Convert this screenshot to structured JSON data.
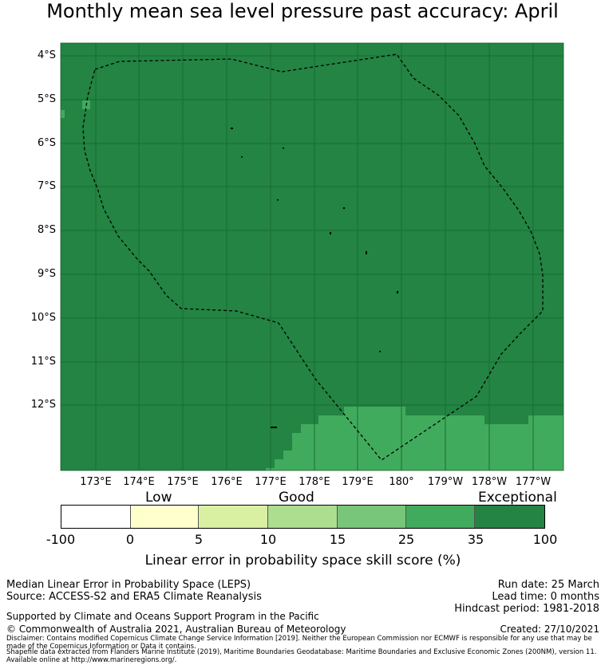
{
  "title": "Monthly mean sea level pressure past accuracy: April",
  "map": {
    "lat_labels": [
      "4°S",
      "5°S",
      "6°S",
      "7°S",
      "8°S",
      "9°S",
      "10°S",
      "11°S",
      "12°S"
    ],
    "lon_labels": [
      "173°E",
      "174°E",
      "175°E",
      "176°E",
      "177°E",
      "178°E",
      "179°E",
      "180°",
      "179°W",
      "178°W",
      "177°W"
    ],
    "region": "EEZ boundary",
    "dominant_category": "Exceptional"
  },
  "legend": {
    "category_labels": [
      "Low",
      "Good",
      "Exceptional"
    ],
    "ticks": [
      "-100",
      "0",
      "5",
      "10",
      "15",
      "25",
      "35",
      "100"
    ],
    "colors": [
      "#ffffff",
      "#ffffcc",
      "#d9f0a3",
      "#addd8e",
      "#78c679",
      "#41ab5d",
      "#238443"
    ],
    "title": "Linear error in probability space skill score (%)"
  },
  "footer": {
    "left_line1": "Median Linear Error in Probability Space (LEPS)",
    "left_line2": "Source: ACCESS-S2 and ERA5 Climate Reanalysis",
    "support": "Supported by Climate and Oceans Support Program in the Pacific",
    "copyright": "© Commonwealth of Australia 2021, Australian Bureau of Meteorology",
    "run_date": "Run date: 25 March",
    "lead_time": "Lead time: 0 months",
    "hindcast": "Hindcast period: 1981-2018",
    "created": "Created: 27/10/2021",
    "disclaimer": "Disclaimer: Contains modified Copernicus Climate Change Service Information [2019]. Neither the European Commission nor ECMWF is responsible for any use that may be made of the Copernicus Information or Data it contains.",
    "shapefile": "Shapefile data extracted from Flanders Marine Institute (2019), Maritime Boundaries Geodatabase: Maritime Boundaries and Exclusive Economic Zones (200NM), version 11. Available online at http://www.marineregions.org/."
  }
}
